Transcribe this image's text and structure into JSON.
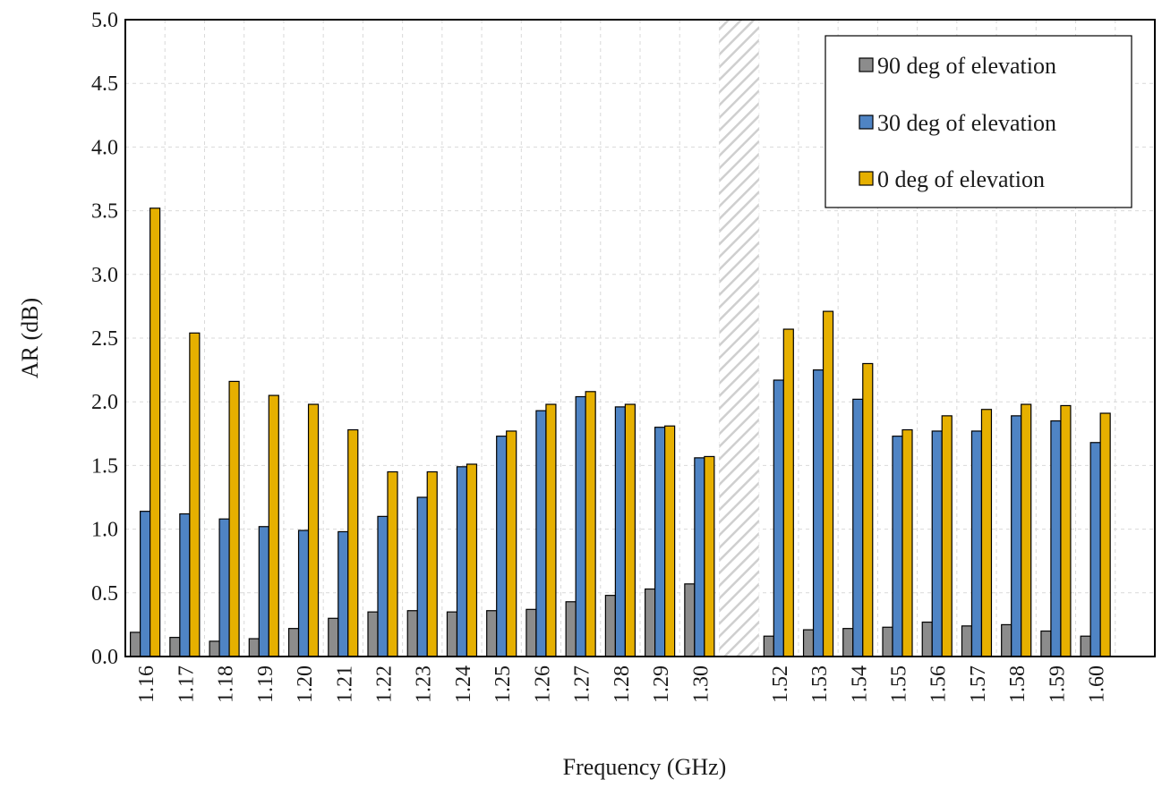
{
  "chart_data": {
    "type": "bar",
    "title": "",
    "xlabel": "Frequency (GHz)",
    "ylabel": "AR (dB)",
    "ylim": [
      0,
      5
    ],
    "y_ticks": [
      "0.0",
      "0.5",
      "1.0",
      "1.5",
      "2.0",
      "2.5",
      "3.0",
      "3.5",
      "4.0",
      "4.5",
      "5.0"
    ],
    "grid": true,
    "legend_position": "top-right",
    "x_break_between": [
      "1.30",
      "1.52"
    ],
    "categories": [
      "1.16",
      "1.17",
      "1.18",
      "1.19",
      "1.20",
      "1.21",
      "1.22",
      "1.23",
      "1.24",
      "1.25",
      "1.26",
      "1.27",
      "1.28",
      "1.29",
      "1.30",
      "1.52",
      "1.53",
      "1.54",
      "1.55",
      "1.56",
      "1.57",
      "1.58",
      "1.59",
      "1.60"
    ],
    "series": [
      {
        "name": "90 deg of elevation",
        "color": "#8c8c8c",
        "values": [
          0.19,
          0.15,
          0.12,
          0.14,
          0.22,
          0.3,
          0.35,
          0.36,
          0.35,
          0.36,
          0.37,
          0.43,
          0.48,
          0.53,
          0.57,
          0.16,
          0.21,
          0.22,
          0.23,
          0.27,
          0.24,
          0.25,
          0.2,
          0.16
        ]
      },
      {
        "name": "30 deg of elevation",
        "color": "#4f84c4",
        "values": [
          1.14,
          1.12,
          1.08,
          1.02,
          0.99,
          0.98,
          1.1,
          1.25,
          1.49,
          1.73,
          1.93,
          2.04,
          1.96,
          1.8,
          1.56,
          2.17,
          2.25,
          2.02,
          1.73,
          1.77,
          1.77,
          1.89,
          1.85,
          1.68
        ]
      },
      {
        "name": "0 deg of elevation",
        "color": "#e6b000",
        "values": [
          3.52,
          2.54,
          2.16,
          2.05,
          1.98,
          1.78,
          1.45,
          1.45,
          1.51,
          1.77,
          1.98,
          2.08,
          1.98,
          1.81,
          1.57,
          2.57,
          2.71,
          2.3,
          1.78,
          1.89,
          1.94,
          1.98,
          1.97,
          1.91
        ]
      }
    ]
  }
}
